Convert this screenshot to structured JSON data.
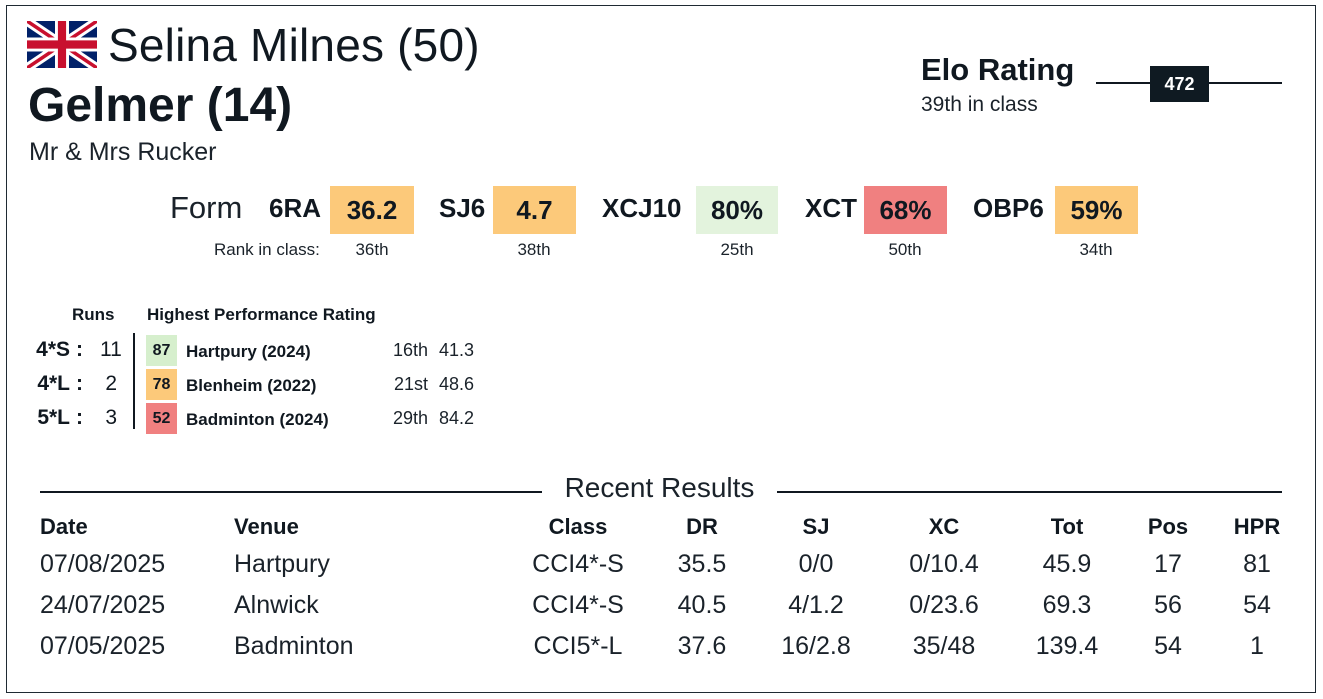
{
  "header": {
    "flag_icon": "union-jack-flag-icon",
    "rider": "Selina Milnes (50)",
    "horse": "Gelmer (14)",
    "owner": "Mr & Mrs Rucker"
  },
  "elo": {
    "title": "Elo Rating",
    "class_rank": "39th in class",
    "value": "472"
  },
  "form": {
    "label": "Form",
    "rank_label": "Rank in class:",
    "items": [
      {
        "name": "6RA",
        "value": "36.2",
        "rank": "36th",
        "color": "#fcc97a"
      },
      {
        "name": "SJ6",
        "value": "4.7",
        "rank": "38th",
        "color": "#fcc97a"
      },
      {
        "name": "XCJ10",
        "value": "80%",
        "rank": "25th",
        "color": "#e3f3dd"
      },
      {
        "name": "XCT",
        "value": "68%",
        "rank": "50th",
        "color": "#f08080"
      },
      {
        "name": "OBP6",
        "value": "59%",
        "rank": "34th",
        "color": "#fcc97a"
      }
    ]
  },
  "runs": {
    "runs_header": "Runs",
    "hpr_header": "Highest Performance Rating",
    "rows": [
      {
        "cls": "4*S",
        "sep": ":",
        "count": "11",
        "hpr": "87",
        "event": "Hartpury  (2024)",
        "rank": "16th",
        "score": "41.3",
        "color": "#d6efcd"
      },
      {
        "cls": "4*L",
        "sep": ":",
        "count": "2",
        "hpr": "78",
        "event": "Blenheim  (2022)",
        "rank": "21st",
        "score": "48.6",
        "color": "#fcc97a"
      },
      {
        "cls": "5*L",
        "sep": ":",
        "count": "3",
        "hpr": "52",
        "event": "Badminton  (2024)",
        "rank": "29th",
        "score": "84.2",
        "color": "#f08080"
      }
    ]
  },
  "results": {
    "title": "Recent Results",
    "headers": {
      "date": "Date",
      "venue": "Venue",
      "class": "Class",
      "dr": "DR",
      "sj": "SJ",
      "xc": "XC",
      "tot": "Tot",
      "pos": "Pos",
      "hpr": "HPR"
    },
    "rows": [
      {
        "date": "07/08/2025",
        "venue": "Hartpury",
        "class": "CCI4*-S",
        "dr": "35.5",
        "sj": "0/0",
        "xc": "0/10.4",
        "tot": "45.9",
        "pos": "17",
        "hpr": "81"
      },
      {
        "date": "24/07/2025",
        "venue": "Alnwick",
        "class": "CCI4*-S",
        "dr": "40.5",
        "sj": "4/1.2",
        "xc": "0/23.6",
        "tot": "69.3",
        "pos": "56",
        "hpr": "54"
      },
      {
        "date": "07/05/2025",
        "venue": "Badminton",
        "class": "CCI5*-L",
        "dr": "37.6",
        "sj": "16/2.8",
        "xc": "35/48",
        "tot": "139.4",
        "pos": "54",
        "hpr": "1"
      }
    ]
  }
}
